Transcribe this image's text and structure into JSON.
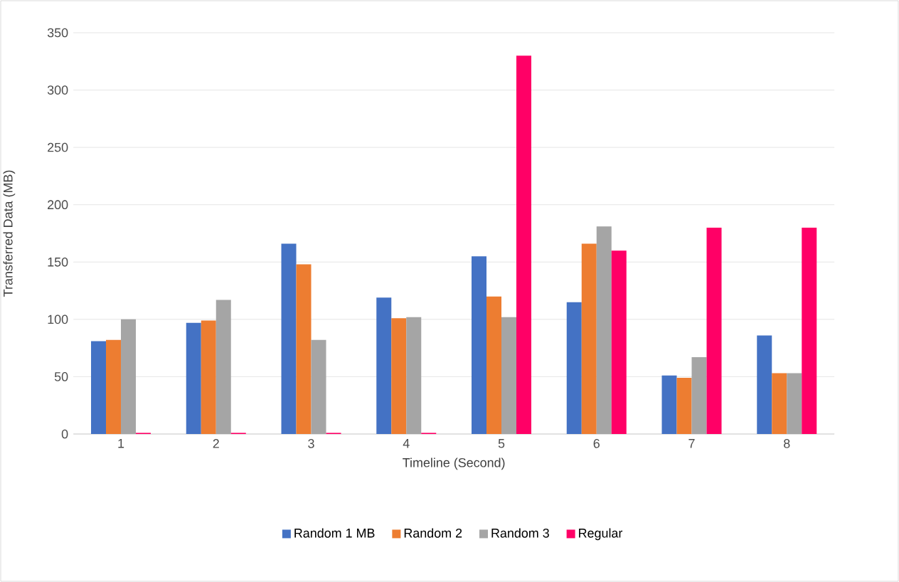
{
  "chart_data": {
    "type": "bar",
    "xlabel": "Timeline (Second)",
    "ylabel": "Transferred Data (MB)",
    "categories": [
      "1",
      "2",
      "3",
      "4",
      "5",
      "6",
      "7",
      "8"
    ],
    "series": [
      {
        "name": "Random 1 MB",
        "color": "#4472c4",
        "values": [
          81,
          97,
          166,
          119,
          155,
          115,
          51,
          86
        ]
      },
      {
        "name": "Random 2",
        "color": "#ed7d31",
        "values": [
          82,
          99,
          148,
          101,
          120,
          166,
          49,
          53
        ]
      },
      {
        "name": "Random 3",
        "color": "#a5a5a5",
        "values": [
          100,
          117,
          82,
          102,
          102,
          181,
          67,
          53
        ]
      },
      {
        "name": "Regular",
        "color": "#ff0066",
        "values": [
          1,
          1,
          1,
          1,
          330,
          160,
          180,
          180
        ]
      }
    ],
    "ylim": [
      0,
      350
    ],
    "yticks": [
      0,
      50,
      100,
      150,
      200,
      250,
      300,
      350
    ],
    "grid": "y",
    "legend": "bottom"
  }
}
